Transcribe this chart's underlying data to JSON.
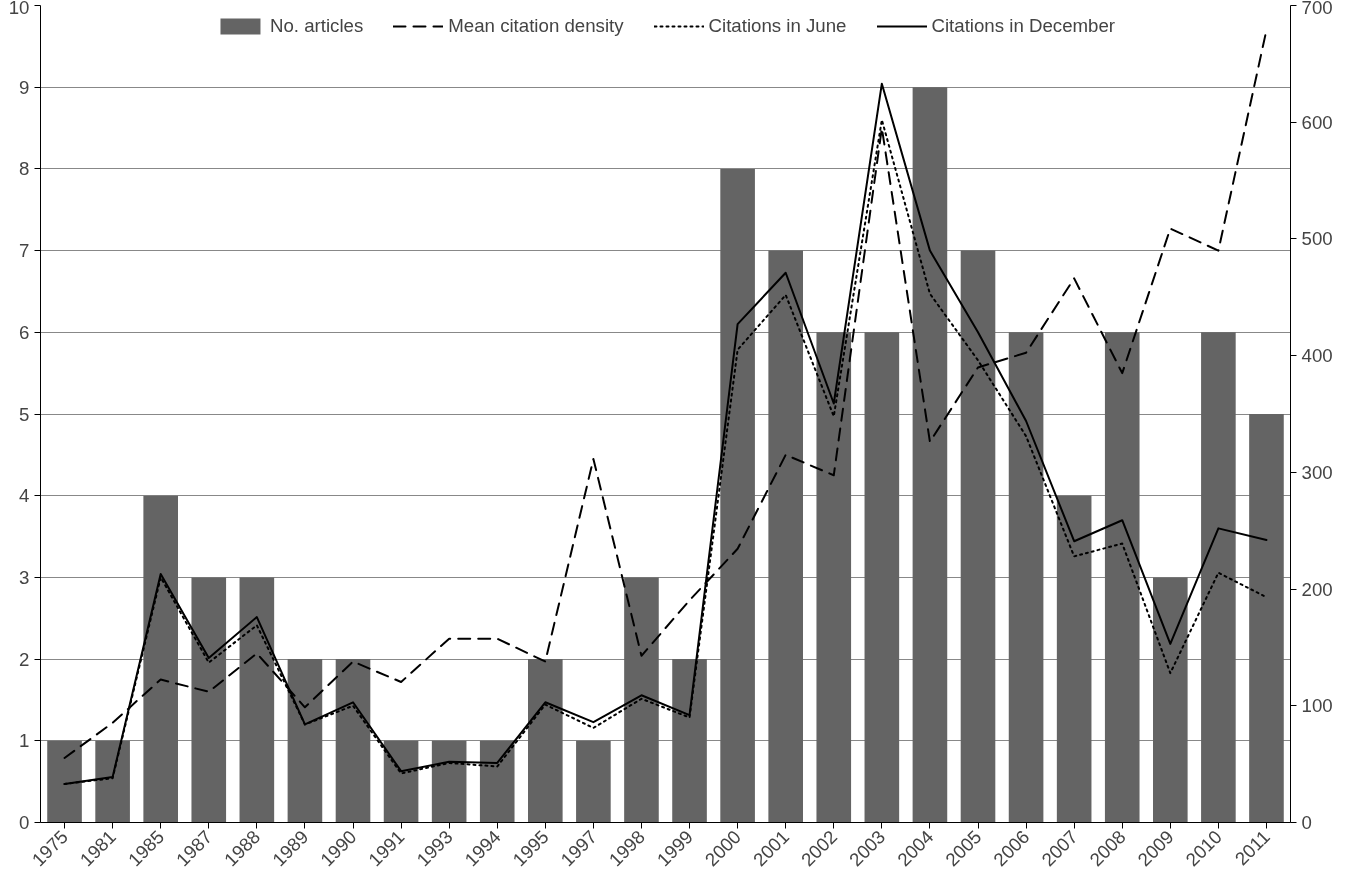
{
  "chart_data": {
    "type": "bar",
    "categories": [
      "1975",
      "1981",
      "1985",
      "1987",
      "1988",
      "1989",
      "1990",
      "1991",
      "1993",
      "1994",
      "1995",
      "1997",
      "1998",
      "1999",
      "2000",
      "2001",
      "2002",
      "2003",
      "2004",
      "2005",
      "2006",
      "2007",
      "2008",
      "2009",
      "2010",
      "2011"
    ],
    "series": [
      {
        "name": "No. articles",
        "color": "#646464",
        "values": [
          1,
          1,
          4,
          3,
          3,
          2,
          2,
          1,
          1,
          1,
          2,
          1,
          3,
          2,
          8,
          7,
          6,
          6,
          9,
          7,
          6,
          4,
          6,
          3,
          6,
          5
        ]
      },
      {
        "name": "Mean citation density",
        "type": "line",
        "line_style": "dashed",
        "color": "#000000",
        "values": [
          0.79,
          1.22,
          1.75,
          1.6,
          2.07,
          1.41,
          1.97,
          1.72,
          2.25,
          2.25,
          1.97,
          4.45,
          2.04,
          2.72,
          3.35,
          4.5,
          4.25,
          8.5,
          4.66,
          5.57,
          5.75,
          6.66,
          5.5,
          7.27,
          7.0,
          9.7
        ]
      },
      {
        "name": "Citations in June",
        "type": "line",
        "line_style": "dotted",
        "axis": "y2",
        "color": "#000000",
        "values": [
          33,
          38,
          210,
          137,
          169,
          84,
          100,
          42,
          51,
          48,
          101,
          81,
          106,
          90,
          405,
          452,
          348,
          602,
          453,
          396,
          331,
          228,
          239,
          128,
          214,
          193
        ]
      },
      {
        "name": "Citations in December",
        "type": "line",
        "line_style": "solid",
        "axis": "y2",
        "color": "#000000",
        "values": [
          33,
          39,
          213,
          141,
          176,
          84,
          103,
          44,
          52,
          51,
          103,
          86,
          109,
          92,
          427,
          471,
          359,
          633,
          490,
          420,
          344,
          241,
          259,
          153,
          252,
          242
        ]
      }
    ],
    "ylim": [
      0,
      10
    ],
    "yticks": [
      0,
      1,
      2,
      3,
      4,
      5,
      6,
      7,
      8,
      9,
      10
    ],
    "y2lim": [
      0,
      700
    ],
    "y2ticks": [
      0,
      100,
      200,
      300,
      400,
      500,
      600,
      700
    ],
    "grid": "y",
    "legend": "top"
  }
}
